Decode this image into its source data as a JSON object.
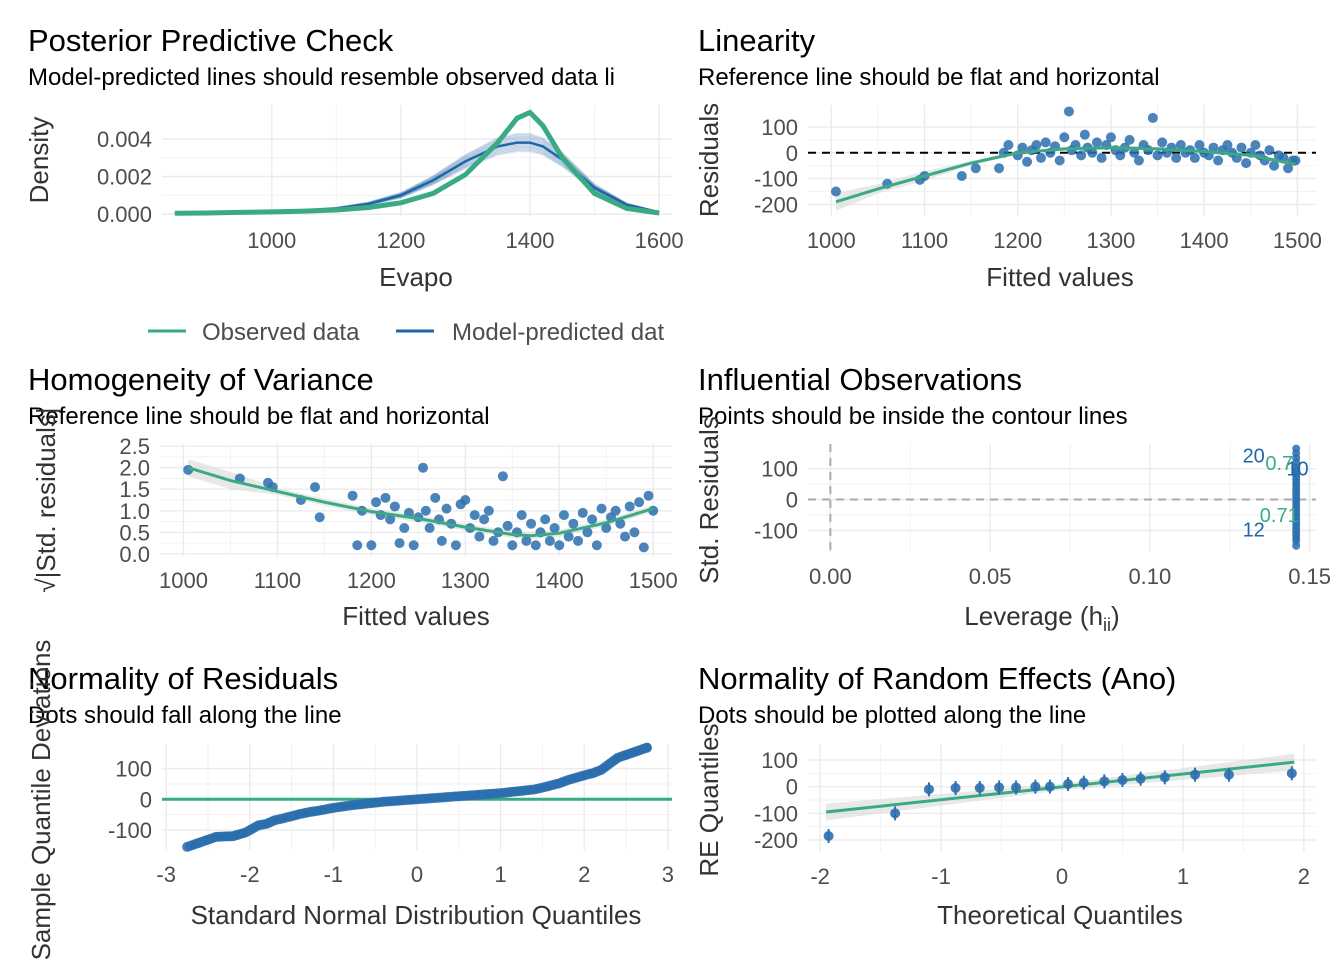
{
  "colors": {
    "observed": "#3aaa85",
    "predicted": "#1f66a8",
    "points": "#2b6fae",
    "ref_line": "#000000",
    "smooth": "#3aaa85",
    "band": "#d9d9d9",
    "grid": "#ebebeb"
  },
  "chart_data": [
    {
      "id": "ppc",
      "type": "line",
      "title": "Posterior Predictive Check",
      "subtitle": "Model-predicted lines should resemble observed data li",
      "xlabel": "Evapo",
      "ylabel": "Density",
      "xlim": [
        830,
        1620
      ],
      "ylim": [
        -0.0001,
        0.0058
      ],
      "xticks": [
        "1000",
        "1200",
        "1400",
        "1600"
      ],
      "xtick_values": [
        1000,
        1200,
        1400,
        1600
      ],
      "yticks": [
        "0.000",
        "0.002",
        "0.004"
      ],
      "ytick_values": [
        0,
        0.002,
        0.004
      ],
      "legend": [
        "Observed data",
        "Model-predicted dat"
      ],
      "series": [
        {
          "name": "Observed data",
          "x": [
            850,
            900,
            950,
            1000,
            1050,
            1100,
            1150,
            1200,
            1250,
            1300,
            1350,
            1380,
            1400,
            1420,
            1450,
            1500,
            1550,
            1600
          ],
          "y": [
            5e-05,
            6e-05,
            9e-05,
            0.00012,
            0.00016,
            0.00022,
            0.00035,
            0.0006,
            0.0011,
            0.0021,
            0.0038,
            0.0051,
            0.0054,
            0.0047,
            0.003,
            0.0011,
            0.0003,
            6e-05
          ]
        },
        {
          "name": "Model-predicted dat",
          "x": [
            850,
            900,
            950,
            1000,
            1050,
            1100,
            1150,
            1200,
            1250,
            1300,
            1350,
            1380,
            1400,
            1420,
            1450,
            1500,
            1550,
            1600
          ],
          "y": [
            5e-05,
            7e-05,
            0.0001,
            0.00014,
            0.0002,
            0.0003,
            0.00055,
            0.001,
            0.0018,
            0.0028,
            0.0036,
            0.0038,
            0.0038,
            0.0036,
            0.0029,
            0.0014,
            0.0005,
            0.0001
          ]
        }
      ]
    },
    {
      "id": "linearity",
      "type": "scatter",
      "title": "Linearity",
      "subtitle": "Reference line should be flat and horizontal",
      "xlabel": "Fitted values",
      "ylabel": "Residuals",
      "xlim": [
        975,
        1520
      ],
      "ylim": [
        -245,
        185
      ],
      "xticks": [
        "1000",
        "1100",
        "1200",
        "1300",
        "1400",
        "1500"
      ],
      "xtick_values": [
        1000,
        1100,
        1200,
        1300,
        1400,
        1500
      ],
      "yticks": [
        "-200",
        "-100",
        "0",
        "100"
      ],
      "ytick_values": [
        -200,
        -100,
        0,
        100
      ],
      "points": [
        [
          1005,
          -150
        ],
        [
          1060,
          -120
        ],
        [
          1095,
          -105
        ],
        [
          1100,
          -90
        ],
        [
          1140,
          -90
        ],
        [
          1155,
          -60
        ],
        [
          1180,
          -60
        ],
        [
          1185,
          0
        ],
        [
          1190,
          30
        ],
        [
          1200,
          -10
        ],
        [
          1205,
          20
        ],
        [
          1210,
          -35
        ],
        [
          1215,
          10
        ],
        [
          1220,
          30
        ],
        [
          1225,
          -20
        ],
        [
          1230,
          40
        ],
        [
          1235,
          0
        ],
        [
          1240,
          25
        ],
        [
          1245,
          -30
        ],
        [
          1250,
          60
        ],
        [
          1255,
          160
        ],
        [
          1258,
          10
        ],
        [
          1262,
          30
        ],
        [
          1268,
          -10
        ],
        [
          1272,
          70
        ],
        [
          1275,
          20
        ],
        [
          1280,
          0
        ],
        [
          1285,
          40
        ],
        [
          1290,
          -20
        ],
        [
          1295,
          30
        ],
        [
          1300,
          60
        ],
        [
          1305,
          10
        ],
        [
          1310,
          -10
        ],
        [
          1315,
          20
        ],
        [
          1320,
          50
        ],
        [
          1325,
          0
        ],
        [
          1330,
          -30
        ],
        [
          1335,
          30
        ],
        [
          1340,
          10
        ],
        [
          1345,
          135
        ],
        [
          1350,
          -10
        ],
        [
          1355,
          40
        ],
        [
          1360,
          0
        ],
        [
          1365,
          20
        ],
        [
          1370,
          -20
        ],
        [
          1375,
          30
        ],
        [
          1380,
          0
        ],
        [
          1385,
          10
        ],
        [
          1390,
          -20
        ],
        [
          1395,
          30
        ],
        [
          1400,
          0
        ],
        [
          1405,
          -10
        ],
        [
          1410,
          20
        ],
        [
          1415,
          -30
        ],
        [
          1420,
          10
        ],
        [
          1425,
          30
        ],
        [
          1430,
          0
        ],
        [
          1435,
          -20
        ],
        [
          1440,
          20
        ],
        [
          1445,
          -40
        ],
        [
          1450,
          0
        ],
        [
          1455,
          30
        ],
        [
          1460,
          -10
        ],
        [
          1465,
          -30
        ],
        [
          1470,
          10
        ],
        [
          1475,
          -50
        ],
        [
          1480,
          -10
        ],
        [
          1485,
          -20
        ],
        [
          1490,
          -60
        ],
        [
          1495,
          -30
        ],
        [
          1498,
          -30
        ]
      ],
      "smooth": {
        "x": [
          1005,
          1050,
          1100,
          1150,
          1200,
          1250,
          1300,
          1350,
          1400,
          1450,
          1498
        ],
        "y": [
          -190,
          -140,
          -90,
          -40,
          0,
          15,
          20,
          15,
          5,
          -10,
          -45
        ]
      },
      "ref_y": 0
    },
    {
      "id": "homogeneity",
      "type": "scatter",
      "title": "Homogeneity of Variance",
      "subtitle": "Reference line should be flat and horizontal",
      "xlabel": "Fitted values",
      "ylabel": "√|Std. residuals|",
      "xlim": [
        975,
        1520
      ],
      "ylim": [
        -0.05,
        2.55
      ],
      "xticks": [
        "1000",
        "1100",
        "1200",
        "1300",
        "1400",
        "1500"
      ],
      "xtick_values": [
        1000,
        1100,
        1200,
        1300,
        1400,
        1500
      ],
      "yticks": [
        "0.0",
        "0.5",
        "1.0",
        "1.5",
        "2.0",
        "2.5"
      ],
      "ytick_values": [
        0,
        0.5,
        1.0,
        1.5,
        2.0,
        2.5
      ],
      "points": [
        [
          1005,
          1.95
        ],
        [
          1060,
          1.75
        ],
        [
          1090,
          1.65
        ],
        [
          1095,
          1.55
        ],
        [
          1125,
          1.25
        ],
        [
          1140,
          1.55
        ],
        [
          1145,
          0.85
        ],
        [
          1180,
          1.35
        ],
        [
          1185,
          0.2
        ],
        [
          1190,
          1.0
        ],
        [
          1200,
          0.2
        ],
        [
          1205,
          1.2
        ],
        [
          1210,
          0.9
        ],
        [
          1215,
          1.3
        ],
        [
          1220,
          0.8
        ],
        [
          1225,
          1.1
        ],
        [
          1230,
          0.25
        ],
        [
          1235,
          0.6
        ],
        [
          1240,
          0.95
        ],
        [
          1245,
          0.2
        ],
        [
          1250,
          0.85
        ],
        [
          1255,
          2.0
        ],
        [
          1258,
          1.0
        ],
        [
          1262,
          0.6
        ],
        [
          1268,
          1.3
        ],
        [
          1272,
          0.8
        ],
        [
          1275,
          0.3
        ],
        [
          1280,
          1.05
        ],
        [
          1285,
          0.7
        ],
        [
          1290,
          0.2
        ],
        [
          1295,
          1.15
        ],
        [
          1300,
          1.25
        ],
        [
          1305,
          0.6
        ],
        [
          1310,
          0.9
        ],
        [
          1315,
          0.4
        ],
        [
          1320,
          0.8
        ],
        [
          1325,
          1.0
        ],
        [
          1330,
          0.3
        ],
        [
          1335,
          0.5
        ],
        [
          1340,
          1.8
        ],
        [
          1345,
          0.65
        ],
        [
          1350,
          0.2
        ],
        [
          1355,
          0.5
        ],
        [
          1360,
          0.9
        ],
        [
          1365,
          0.3
        ],
        [
          1370,
          0.7
        ],
        [
          1375,
          0.2
        ],
        [
          1380,
          0.5
        ],
        [
          1385,
          0.8
        ],
        [
          1390,
          0.3
        ],
        [
          1395,
          0.6
        ],
        [
          1400,
          0.2
        ],
        [
          1405,
          0.9
        ],
        [
          1410,
          0.4
        ],
        [
          1415,
          0.7
        ],
        [
          1420,
          0.3
        ],
        [
          1425,
          0.95
        ],
        [
          1430,
          0.5
        ],
        [
          1435,
          0.8
        ],
        [
          1440,
          0.2
        ],
        [
          1445,
          1.05
        ],
        [
          1450,
          0.6
        ],
        [
          1455,
          0.85
        ],
        [
          1460,
          1.0
        ],
        [
          1465,
          0.7
        ],
        [
          1470,
          0.4
        ],
        [
          1475,
          1.1
        ],
        [
          1480,
          0.5
        ],
        [
          1485,
          1.2
        ],
        [
          1490,
          0.15
        ],
        [
          1495,
          1.35
        ],
        [
          1500,
          1.0
        ]
      ],
      "smooth": {
        "x": [
          1005,
          1050,
          1100,
          1150,
          1200,
          1250,
          1300,
          1350,
          1370,
          1400,
          1450,
          1500
        ],
        "y": [
          2.0,
          1.7,
          1.45,
          1.2,
          0.98,
          0.82,
          0.62,
          0.45,
          0.42,
          0.48,
          0.72,
          1.05
        ]
      }
    },
    {
      "id": "influential",
      "type": "scatter",
      "title": "Influential Observations",
      "subtitle": "Points should be inside the contour lines",
      "xlabel": "Leverage (h",
      "xlabel_sub": "ii",
      "xlabel_end": ")",
      "ylabel": "Std. Residuals",
      "xlim": [
        -0.007,
        0.152
      ],
      "ylim": [
        -170,
        180
      ],
      "xticks": [
        "0.00",
        "0.05",
        "0.10",
        "0.15"
      ],
      "xtick_values": [
        0,
        0.05,
        0.1,
        0.15
      ],
      "yticks": [
        "-100",
        "0",
        "100"
      ],
      "ytick_values": [
        -100,
        0,
        100
      ],
      "leverage": 0.1458,
      "residuals": [
        165,
        150,
        135,
        120,
        105,
        95,
        85,
        75,
        65,
        55,
        45,
        35,
        25,
        15,
        5,
        -5,
        -15,
        -25,
        -35,
        -45,
        -55,
        -65,
        -75,
        -85,
        -95,
        -105,
        -115,
        -125,
        -135,
        -150
      ],
      "labels": [
        {
          "text": "20",
          "x": 0.1325,
          "y": 120,
          "role": "point"
        },
        {
          "text": "0.7",
          "x": 0.1405,
          "y": 95,
          "role": "contour"
        },
        {
          "text": "10",
          "x": 0.1462,
          "y": 78,
          "role": "point"
        },
        {
          "text": "0.71",
          "x": 0.1405,
          "y": -72,
          "role": "contour"
        },
        {
          "text": "12",
          "x": 0.1325,
          "y": -120,
          "role": "point"
        }
      ]
    },
    {
      "id": "qq",
      "type": "scatter",
      "title": "Normality of Residuals",
      "subtitle": "Dots should fall along the line",
      "xlabel": "Standard Normal Distribution Quantiles",
      "ylabel": "Sample Quantile Deviations",
      "xlim": [
        -3.05,
        3.05
      ],
      "ylim": [
        -165,
        180
      ],
      "xticks": [
        "-3",
        "-2",
        "-1",
        "0",
        "1",
        "2",
        "3"
      ],
      "xtick_values": [
        -3,
        -2,
        -1,
        0,
        1,
        2,
        3
      ],
      "yticks": [
        "-100",
        "0",
        "100"
      ],
      "ytick_values": [
        -100,
        0,
        100
      ],
      "points": [
        [
          -2.75,
          -155
        ],
        [
          -2.4,
          -122
        ],
        [
          -2.2,
          -120
        ],
        [
          -2.05,
          -108
        ],
        [
          -1.9,
          -85
        ],
        [
          -1.8,
          -80
        ],
        [
          -1.7,
          -68
        ],
        [
          -1.6,
          -62
        ],
        [
          -1.5,
          -55
        ],
        [
          -1.4,
          -48
        ],
        [
          -1.3,
          -42
        ],
        [
          -1.2,
          -38
        ],
        [
          -1.1,
          -33
        ],
        [
          -1.0,
          -28
        ],
        [
          -0.9,
          -24
        ],
        [
          -0.8,
          -20
        ],
        [
          -0.7,
          -17
        ],
        [
          -0.6,
          -14
        ],
        [
          -0.5,
          -11
        ],
        [
          -0.4,
          -8
        ],
        [
          -0.3,
          -6
        ],
        [
          -0.2,
          -4
        ],
        [
          -0.1,
          -2
        ],
        [
          0.0,
          0
        ],
        [
          0.1,
          2
        ],
        [
          0.2,
          4
        ],
        [
          0.3,
          6
        ],
        [
          0.4,
          8
        ],
        [
          0.5,
          10
        ],
        [
          0.6,
          12
        ],
        [
          0.7,
          14
        ],
        [
          0.8,
          16
        ],
        [
          0.9,
          18
        ],
        [
          1.0,
          20
        ],
        [
          1.1,
          23
        ],
        [
          1.2,
          26
        ],
        [
          1.3,
          29
        ],
        [
          1.4,
          32
        ],
        [
          1.5,
          38
        ],
        [
          1.6,
          45
        ],
        [
          1.7,
          52
        ],
        [
          1.8,
          62
        ],
        [
          1.9,
          70
        ],
        [
          2.0,
          78
        ],
        [
          2.1,
          85
        ],
        [
          2.2,
          95
        ],
        [
          2.4,
          135
        ],
        [
          2.75,
          168
        ]
      ],
      "ref_y": 0
    },
    {
      "id": "re",
      "type": "scatter",
      "title": "Normality of Random Effects (Ano)",
      "subtitle": "Dots should be plotted along the line",
      "xlabel": "Theoretical Quantiles",
      "ylabel": "RE Quantiles",
      "xlim": [
        -2.1,
        2.1
      ],
      "ylim": [
        -245,
        160
      ],
      "xticks": [
        "-2",
        "-1",
        "0",
        "1",
        "2"
      ],
      "xtick_values": [
        -2,
        -1,
        0,
        1,
        2
      ],
      "yticks": [
        "-200",
        "-100",
        "0",
        "100"
      ],
      "ytick_values": [
        -200,
        -100,
        0,
        100
      ],
      "points": [
        [
          -1.93,
          -185
        ],
        [
          -1.38,
          -100
        ],
        [
          -1.1,
          -10
        ],
        [
          -0.88,
          -5
        ],
        [
          -0.68,
          -5
        ],
        [
          -0.52,
          -3
        ],
        [
          -0.38,
          -3
        ],
        [
          -0.22,
          0
        ],
        [
          -0.1,
          0
        ],
        [
          0.05,
          10
        ],
        [
          0.18,
          15
        ],
        [
          0.35,
          20
        ],
        [
          0.5,
          25
        ],
        [
          0.65,
          30
        ],
        [
          0.85,
          35
        ],
        [
          1.1,
          45
        ],
        [
          1.38,
          45
        ],
        [
          1.9,
          50
        ]
      ],
      "line": {
        "x": [
          -1.95,
          1.92
        ],
        "y": [
          -95,
          92
        ]
      }
    }
  ]
}
